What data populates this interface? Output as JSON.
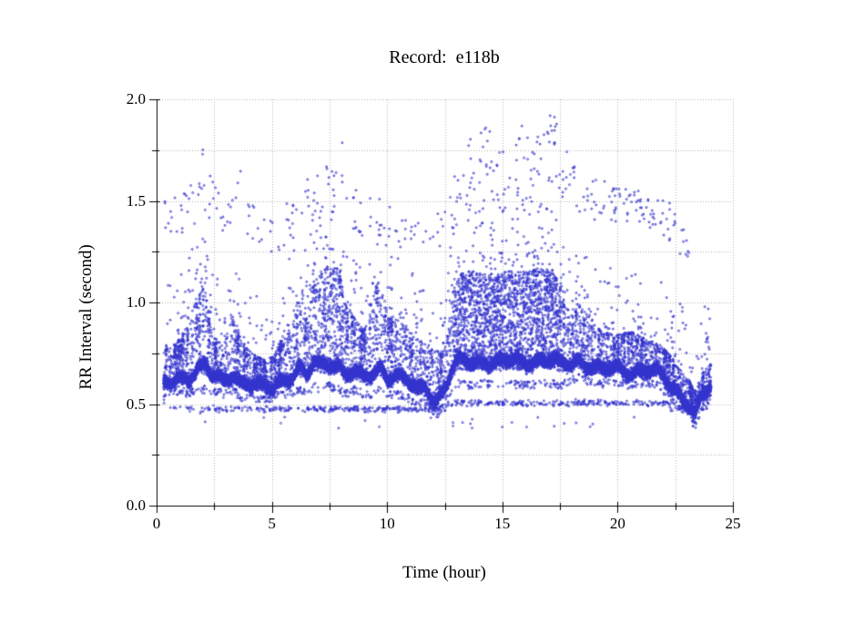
{
  "figure": {
    "title": "Record:  e118b"
  },
  "chart_data": {
    "type": "scatter",
    "title": "Record:  e118b",
    "xlabel": "Time (hour)",
    "ylabel": "RR Interval (second)",
    "xlim": [
      0,
      25
    ],
    "ylim": [
      0.0,
      2.0
    ],
    "grid": "dotted gridlines at every minor tick, no top/right frame",
    "legend": "none",
    "x_axis": {
      "label": "Time (hour)",
      "tick_values": [
        0,
        5,
        10,
        15,
        20,
        25
      ],
      "tick_labels": [
        "0",
        "5",
        "10",
        "15",
        "20",
        "25"
      ],
      "minor_step": 2.5
    },
    "y_axis": {
      "label": "RR Interval (second)",
      "tick_values": [
        0,
        0.5,
        1.0,
        1.5,
        2.0
      ],
      "tick_labels": [
        "0.0",
        "0.5",
        "1.0",
        "1.5",
        "2.0"
      ],
      "minor_step": 0.25
    },
    "marker": {
      "shape": "open-circle",
      "color": "#3333cd",
      "radius_px": 1.0
    },
    "description": "24-hour RR-interval tachogram for record e118b: dense beat-to-beat band ~0.6-0.8 s with spiky excursions to ~1.2 s, a broad dense block ~0.6-1.2 s between hours 13-17.5, a sparse ectopic band near 0.45-0.55 s across all hours, and scattered long pauses 1.2-1.97 s (peaking near hour 17), band dropping to ~0.45-0.65 s after hour 22",
    "scatter_model": {
      "seed": 7,
      "t_start": 0.3,
      "t_end": 24.05,
      "step": 0.002,
      "band_keypoints": [
        [
          0.3,
          0.55,
          0.8
        ],
        [
          0.6,
          0.58,
          0.78
        ],
        [
          1.0,
          0.6,
          0.82
        ],
        [
          1.4,
          0.58,
          0.9
        ],
        [
          1.8,
          0.6,
          1.05
        ],
        [
          2.1,
          0.6,
          1.1
        ],
        [
          2.4,
          0.6,
          0.85
        ],
        [
          2.9,
          0.58,
          0.78
        ],
        [
          3.3,
          0.6,
          0.95
        ],
        [
          3.7,
          0.56,
          0.82
        ],
        [
          4.1,
          0.56,
          0.76
        ],
        [
          4.6,
          0.55,
          0.72
        ],
        [
          5.1,
          0.56,
          0.74
        ],
        [
          5.5,
          0.58,
          0.85
        ],
        [
          5.9,
          0.58,
          0.95
        ],
        [
          6.2,
          0.6,
          1.05
        ],
        [
          6.5,
          0.58,
          0.92
        ],
        [
          6.8,
          0.62,
          1.12
        ],
        [
          7.1,
          0.6,
          1.16
        ],
        [
          7.5,
          0.62,
          1.18
        ],
        [
          7.9,
          0.6,
          1.17
        ],
        [
          8.2,
          0.58,
          1.0
        ],
        [
          8.6,
          0.6,
          0.92
        ],
        [
          9.0,
          0.58,
          0.86
        ],
        [
          9.4,
          0.58,
          1.05
        ],
        [
          9.7,
          0.6,
          1.12
        ],
        [
          10.0,
          0.58,
          0.95
        ],
        [
          10.4,
          0.58,
          0.92
        ],
        [
          10.9,
          0.56,
          0.88
        ],
        [
          11.3,
          0.52,
          0.82
        ],
        [
          11.7,
          0.55,
          0.8
        ],
        [
          12.1,
          0.46,
          0.76
        ],
        [
          12.5,
          0.54,
          0.78
        ],
        [
          12.85,
          0.6,
          1.05
        ],
        [
          13.1,
          0.63,
          1.14
        ],
        [
          13.6,
          0.62,
          1.16
        ],
        [
          14.2,
          0.63,
          1.15
        ],
        [
          14.8,
          0.62,
          1.14
        ],
        [
          15.4,
          0.63,
          1.16
        ],
        [
          16.0,
          0.62,
          1.15
        ],
        [
          16.6,
          0.63,
          1.17
        ],
        [
          17.2,
          0.63,
          1.16
        ],
        [
          17.5,
          0.62,
          1.08
        ],
        [
          17.8,
          0.64,
          0.96
        ],
        [
          18.3,
          0.66,
          1.0
        ],
        [
          18.8,
          0.64,
          0.94
        ],
        [
          19.3,
          0.63,
          0.86
        ],
        [
          20.0,
          0.64,
          0.84
        ],
        [
          20.6,
          0.62,
          0.86
        ],
        [
          21.2,
          0.64,
          0.82
        ],
        [
          21.8,
          0.62,
          0.8
        ],
        [
          22.3,
          0.56,
          0.74
        ],
        [
          22.7,
          0.52,
          0.68
        ],
        [
          23.1,
          0.48,
          0.62
        ],
        [
          23.35,
          0.42,
          0.56
        ],
        [
          23.6,
          0.5,
          0.64
        ],
        [
          23.85,
          0.54,
          0.68
        ],
        [
          24.05,
          0.56,
          0.7
        ]
      ],
      "dense_spans": [
        [
          6.8,
          8.15,
          0.55
        ],
        [
          12.85,
          17.45,
          0.85
        ]
      ],
      "upper_outlier_keypoints": [
        [
          0.35,
          1.28,
          1.5,
          0.6
        ],
        [
          0.9,
          1.3,
          1.52,
          0.6
        ],
        [
          1.5,
          1.32,
          1.6,
          0.5
        ],
        [
          2.0,
          1.45,
          1.78,
          0.6
        ],
        [
          2.5,
          1.32,
          1.58,
          0.5
        ],
        [
          3.1,
          1.28,
          1.48,
          0.4
        ],
        [
          3.6,
          1.3,
          1.72,
          0.4
        ],
        [
          4.3,
          1.25,
          1.45,
          0.35
        ],
        [
          5.0,
          1.24,
          1.4,
          0.3
        ],
        [
          5.7,
          1.28,
          1.52,
          0.5
        ],
        [
          6.4,
          1.35,
          1.6,
          0.6
        ],
        [
          7.1,
          1.4,
          1.63,
          0.6
        ],
        [
          7.7,
          1.45,
          1.72,
          0.55
        ],
        [
          8.1,
          1.48,
          1.88,
          0.5
        ],
        [
          8.7,
          1.32,
          1.55,
          0.4
        ],
        [
          9.4,
          1.33,
          1.55,
          0.45
        ],
        [
          10.1,
          1.28,
          1.5,
          0.4
        ],
        [
          10.9,
          1.25,
          1.42,
          0.35
        ],
        [
          11.6,
          1.24,
          1.4,
          0.3
        ],
        [
          12.3,
          1.25,
          1.45,
          0.35
        ],
        [
          12.9,
          1.3,
          1.62,
          0.6
        ],
        [
          13.5,
          1.45,
          1.87,
          0.85
        ],
        [
          14.1,
          1.5,
          1.9,
          0.85
        ],
        [
          14.7,
          1.45,
          1.8,
          0.7
        ],
        [
          15.3,
          1.4,
          1.76,
          0.7
        ],
        [
          15.9,
          1.45,
          1.9,
          0.8
        ],
        [
          16.5,
          1.5,
          1.9,
          0.85
        ],
        [
          17.1,
          1.55,
          1.97,
          0.85
        ],
        [
          17.6,
          1.5,
          1.8,
          0.7
        ],
        [
          18.1,
          1.45,
          1.72,
          0.6
        ],
        [
          18.7,
          1.4,
          1.66,
          0.6
        ],
        [
          19.3,
          1.4,
          1.6,
          0.7
        ],
        [
          19.9,
          1.38,
          1.58,
          0.85
        ],
        [
          20.5,
          1.4,
          1.56,
          0.85
        ],
        [
          21.1,
          1.38,
          1.55,
          0.85
        ],
        [
          21.7,
          1.35,
          1.52,
          0.7
        ],
        [
          22.3,
          1.3,
          1.5,
          0.5
        ],
        [
          22.9,
          1.2,
          1.35,
          0.3
        ],
        [
          23.5,
          1.18,
          1.3,
          0.3
        ]
      ],
      "upper_outlier_density_per_hour": 28,
      "mid_scatter_count": 430,
      "lower_band": {
        "count": 620,
        "t_range": [
          0.3,
          23.9
        ],
        "level_before_hour_12_6": 0.475,
        "level_hours_12_6_to_22_3": 0.505,
        "level_after_hour_22_3": 0.48,
        "spread": 0.022
      }
    }
  },
  "colors": {
    "marker": "#3333cd",
    "grid": "#b0b0b0",
    "axis": "#000000",
    "background": "#ffffff",
    "text": "#000000"
  }
}
